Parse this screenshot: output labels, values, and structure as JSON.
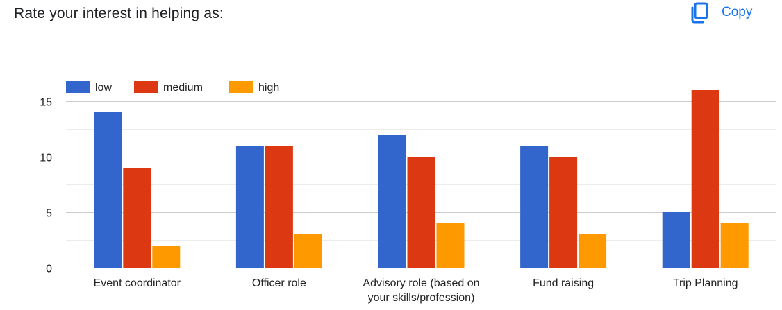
{
  "header": {
    "title": "Rate your interest in helping as:",
    "copy_label": "Copy",
    "copy_icon": "copy-icon",
    "accent_color": "#1a73e8"
  },
  "chart_data": {
    "type": "bar",
    "title": "Rate your interest in helping as:",
    "xlabel": "",
    "ylabel": "",
    "ylim": [
      0,
      17
    ],
    "yticks": [
      0,
      5,
      10,
      15
    ],
    "grid": true,
    "legend_position": "top-left",
    "categories": [
      [
        "Event coordinator"
      ],
      [
        "Officer role"
      ],
      [
        "Advisory role (based on",
        "your skills/profession)"
      ],
      [
        "Fund raising"
      ],
      [
        "Trip Planning"
      ]
    ],
    "series": [
      {
        "name": "low",
        "color": "#3366cc",
        "values": [
          14,
          11,
          12,
          11,
          5
        ]
      },
      {
        "name": "medium",
        "color": "#dc3912",
        "values": [
          9,
          11,
          10,
          10,
          16
        ]
      },
      {
        "name": "high",
        "color": "#ff9900",
        "values": [
          2,
          3,
          4,
          3,
          4
        ]
      }
    ]
  }
}
